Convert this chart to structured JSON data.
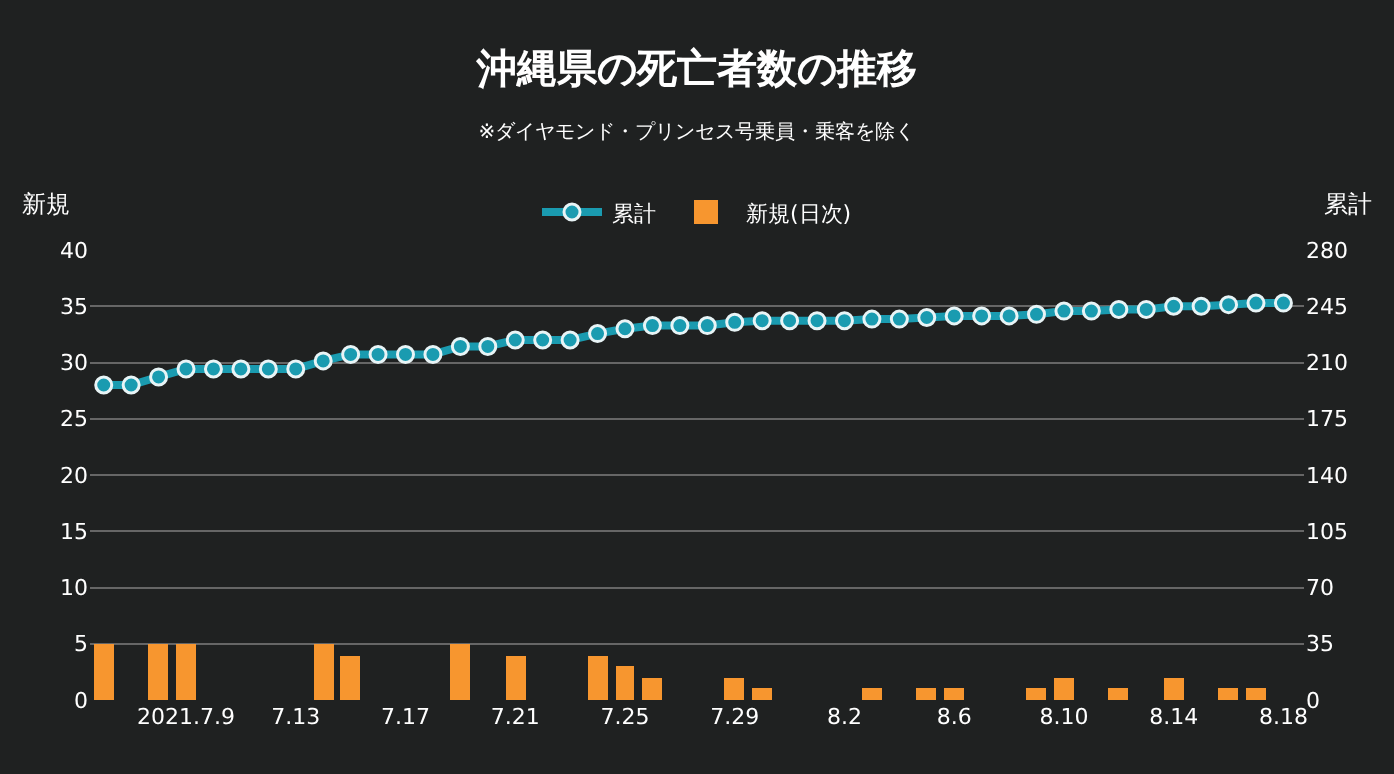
{
  "chart_data": {
    "type": "bar",
    "title": "沖縄県の死亡者数の推移",
    "subtitle": "※ダイヤモンド・プリンセス号乗員・乗客を除く",
    "ylabel": "新規",
    "y2label": "累計",
    "x": [
      "2021-07-06",
      "2021-07-07",
      "2021-07-08",
      "2021-07-09",
      "2021-07-10",
      "2021-07-11",
      "2021-07-12",
      "2021-07-13",
      "2021-07-14",
      "2021-07-15",
      "2021-07-16",
      "2021-07-17",
      "2021-07-18",
      "2021-07-19",
      "2021-07-20",
      "2021-07-21",
      "2021-07-22",
      "2021-07-23",
      "2021-07-24",
      "2021-07-25",
      "2021-07-26",
      "2021-07-27",
      "2021-07-28",
      "2021-07-29",
      "2021-07-30",
      "2021-07-31",
      "2021-08-01",
      "2021-08-02",
      "2021-08-03",
      "2021-08-04",
      "2021-08-05",
      "2021-08-06",
      "2021-08-07",
      "2021-08-08",
      "2021-08-09",
      "2021-08-10",
      "2021-08-11",
      "2021-08-12",
      "2021-08-13",
      "2021-08-14",
      "2021-08-15",
      "2021-08-16",
      "2021-08-17",
      "2021-08-18"
    ],
    "series": [
      {
        "name": "累計",
        "type": "line",
        "axis": "y2",
        "color": "#1a9bb0",
        "marker": "circle",
        "values": [
          196,
          196,
          201,
          206,
          206,
          206,
          206,
          206,
          211,
          215,
          215,
          215,
          215,
          220,
          220,
          224,
          224,
          224,
          228,
          231,
          233,
          233,
          233,
          235,
          236,
          236,
          236,
          236,
          237,
          237,
          238,
          239,
          239,
          239,
          240,
          242,
          242,
          243,
          243,
          245,
          245,
          246,
          247,
          247
        ]
      },
      {
        "name": "新規(日次)",
        "color": "#f7962f",
        "values": [
          5,
          null,
          5,
          5,
          null,
          null,
          null,
          null,
          5,
          4,
          null,
          null,
          null,
          5,
          null,
          4,
          null,
          null,
          4,
          3,
          2,
          null,
          null,
          2,
          1,
          null,
          null,
          null,
          1,
          null,
          1,
          1,
          null,
          null,
          1,
          2,
          null,
          1,
          null,
          2,
          null,
          1,
          1,
          null
        ]
      }
    ],
    "xlim": [
      "2021-07-05T12:00",
      "2021-08-18T18:00"
    ],
    "xticks": [
      {
        "value": "2021-07-09",
        "label": "2021.7.9"
      },
      {
        "value": "2021-07-13",
        "label": "7.13"
      },
      {
        "value": "2021-07-17",
        "label": "7.17"
      },
      {
        "value": "2021-07-21",
        "label": "7.21"
      },
      {
        "value": "2021-07-25",
        "label": "7.25"
      },
      {
        "value": "2021-07-29",
        "label": "7.29"
      },
      {
        "value": "2021-08-02",
        "label": "8.2"
      },
      {
        "value": "2021-08-06",
        "label": "8.6"
      },
      {
        "value": "2021-08-10",
        "label": "8.10"
      },
      {
        "value": "2021-08-14",
        "label": "8.14"
      },
      {
        "value": "2021-08-18",
        "label": "8.18"
      }
    ],
    "ylim": [
      0,
      40
    ],
    "yticks": [
      0,
      5,
      10,
      15,
      20,
      25,
      30,
      35,
      40
    ],
    "y2lim": [
      0,
      280
    ],
    "y2ticks": [
      0,
      35,
      70,
      105,
      140,
      175,
      210,
      245,
      280
    ],
    "grid": "y",
    "legend": "top"
  }
}
